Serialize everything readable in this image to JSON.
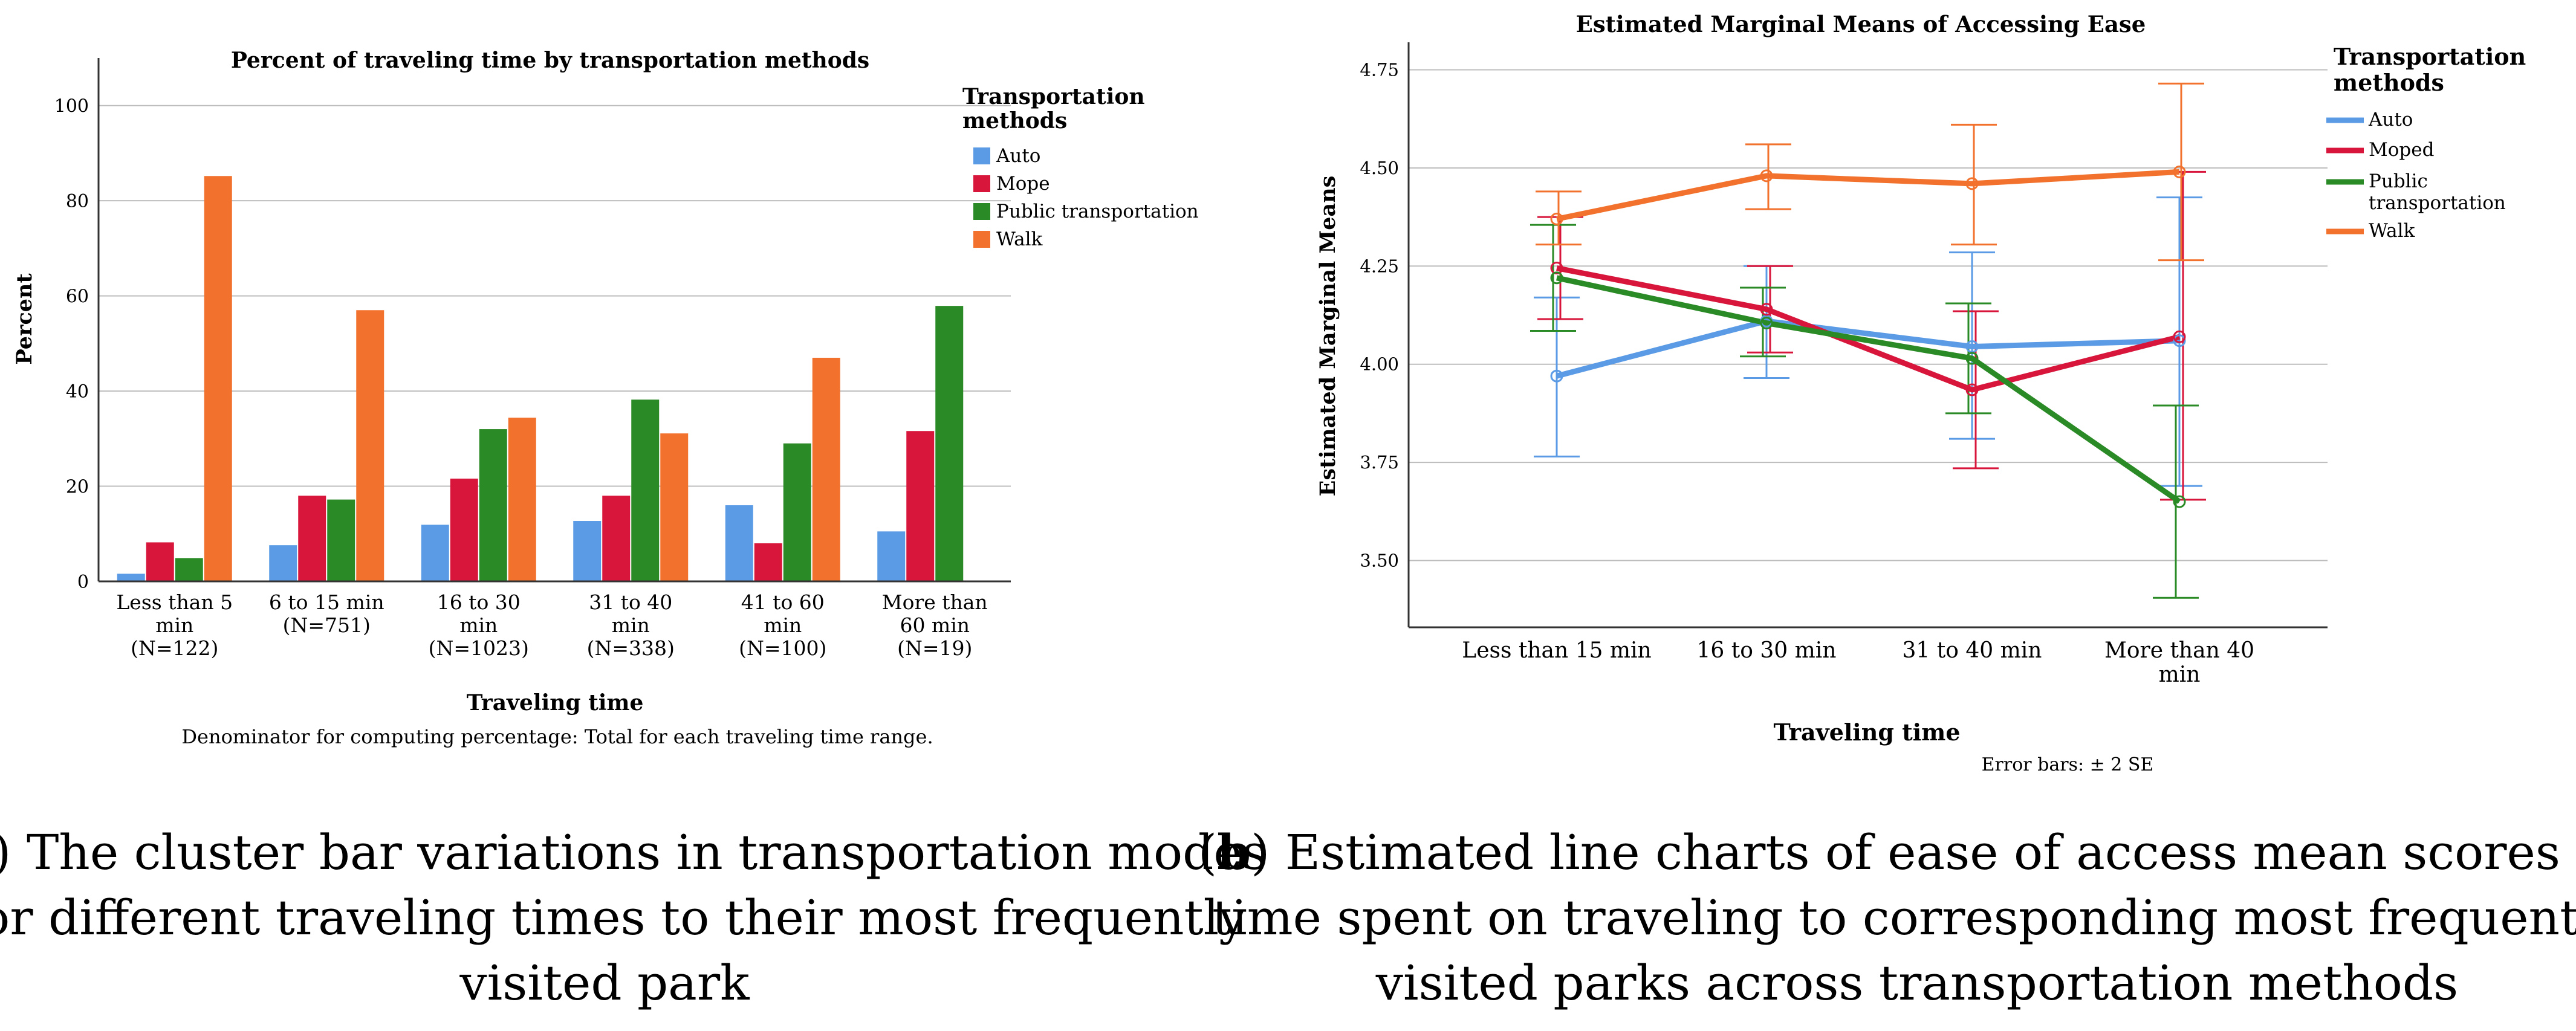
{
  "colors": {
    "Auto": "#5b9be6",
    "Mope": "#d8163c",
    "Moped": "#d8163c",
    "Public transportation": "#2a8a25",
    "Walk": "#f2722d",
    "grid": "#bdbdbd",
    "axis": "#333333"
  },
  "chart_data": [
    {
      "type": "bar",
      "title": "Percent of traveling time by transportation methods",
      "xlabel": "Traveling time",
      "ylabel": "Percent",
      "ylim": [
        0,
        110
      ],
      "yticks": [
        "0",
        "20",
        "40",
        "60",
        "80",
        "100"
      ],
      "legend_title": [
        "Transportation",
        "methods"
      ],
      "categories": [
        [
          "Less than 5",
          "min",
          "(N=122)"
        ],
        [
          "6 to 15 min",
          "(N=751)"
        ],
        [
          "16 to 30",
          "min",
          "(N=1023)"
        ],
        [
          "31 to 40",
          "min",
          "(N=338)"
        ],
        [
          "41 to 60",
          "min",
          "(N=100)"
        ],
        [
          "More than",
          "60 min",
          "(N=19)"
        ]
      ],
      "series": [
        {
          "name": "Auto",
          "values": [
            1.6,
            7.6,
            11.9,
            12.7,
            16.0,
            10.5
          ]
        },
        {
          "name": "Mope",
          "values": [
            8.2,
            18.0,
            21.6,
            18.0,
            8.0,
            31.6
          ]
        },
        {
          "name": "Public transportation",
          "values": [
            4.9,
            17.2,
            32.0,
            38.2,
            29.0,
            57.9
          ]
        },
        {
          "name": "Walk",
          "values": [
            85.2,
            57.0,
            34.4,
            31.1,
            47.0,
            0
          ]
        }
      ],
      "footnote": "Denominator for computing percentage: Total for each traveling time range.",
      "caption_label": "a",
      "caption_lines": [
        ") The cluster bar variations in transportation modes",
        "for different traveling times to their most frequently",
        "visited park"
      ]
    },
    {
      "type": "line",
      "title": "Estimated Marginal Means of Accessing Ease",
      "xlabel": "Traveling time",
      "ylabel": "Estimated Marginal Means",
      "ylim": [
        3.33,
        4.82
      ],
      "yticks": [
        "3.50",
        "3.75",
        "4.00",
        "4.25",
        "4.50",
        "4.75"
      ],
      "legend_title": [
        "Transportation",
        "methods"
      ],
      "categories": [
        [
          "Less than 15 min"
        ],
        [
          "16 to 30 min"
        ],
        [
          "31 to 40 min"
        ],
        [
          "More than 40",
          "min"
        ]
      ],
      "series": [
        {
          "name": "Auto",
          "label_lines": [
            "Auto"
          ],
          "values": [
            3.97,
            4.11,
            4.045,
            4.06
          ],
          "lower": [
            3.765,
            3.965,
            3.81,
            3.69
          ],
          "upper": [
            4.17,
            4.25,
            4.285,
            4.425
          ]
        },
        {
          "name": "Moped",
          "label_lines": [
            "Moped"
          ],
          "values": [
            4.245,
            4.14,
            3.935,
            4.07
          ],
          "lower": [
            4.115,
            4.03,
            3.735,
            3.655
          ],
          "upper": [
            4.375,
            4.25,
            4.135,
            4.49
          ]
        },
        {
          "name": "Public transportation",
          "label_lines": [
            "Public",
            "transportation"
          ],
          "values": [
            4.22,
            4.105,
            4.015,
            3.65
          ],
          "lower": [
            4.085,
            4.02,
            3.875,
            3.405
          ],
          "upper": [
            4.355,
            4.195,
            4.155,
            3.895
          ]
        },
        {
          "name": "Walk",
          "label_lines": [
            "Walk"
          ],
          "values": [
            4.37,
            4.48,
            4.46,
            4.49
          ],
          "lower": [
            4.305,
            4.395,
            4.305,
            4.265
          ],
          "upper": [
            4.44,
            4.56,
            4.61,
            4.715
          ]
        }
      ],
      "footnote": "Error bars: ± 2 SE",
      "caption_label": "b",
      "caption_lines": [
        ") Estimated line charts of ease of access mean scores on",
        "time spent on traveling to corresponding most frequently",
        "visited parks across transportation methods"
      ]
    }
  ]
}
